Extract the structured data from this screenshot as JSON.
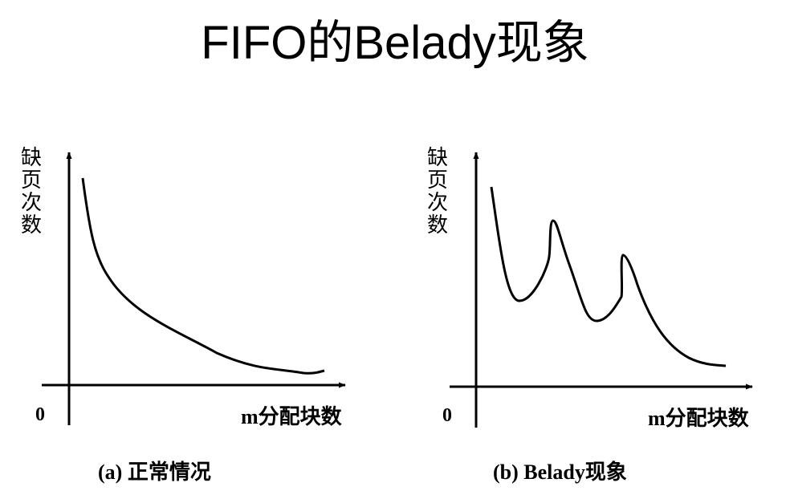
{
  "title": "FIFO的Belady现象",
  "panels": [
    {
      "y_axis_label": "缺页次数",
      "x_axis_label": "m分配块数",
      "origin_label": "0",
      "caption": "(a) 正常情况"
    },
    {
      "y_axis_label": "缺页次数",
      "x_axis_label": "m分配块数",
      "origin_label": "0",
      "caption": "(b) Belady现象"
    }
  ],
  "colors": {
    "line": "#000000",
    "background": "#ffffff"
  }
}
